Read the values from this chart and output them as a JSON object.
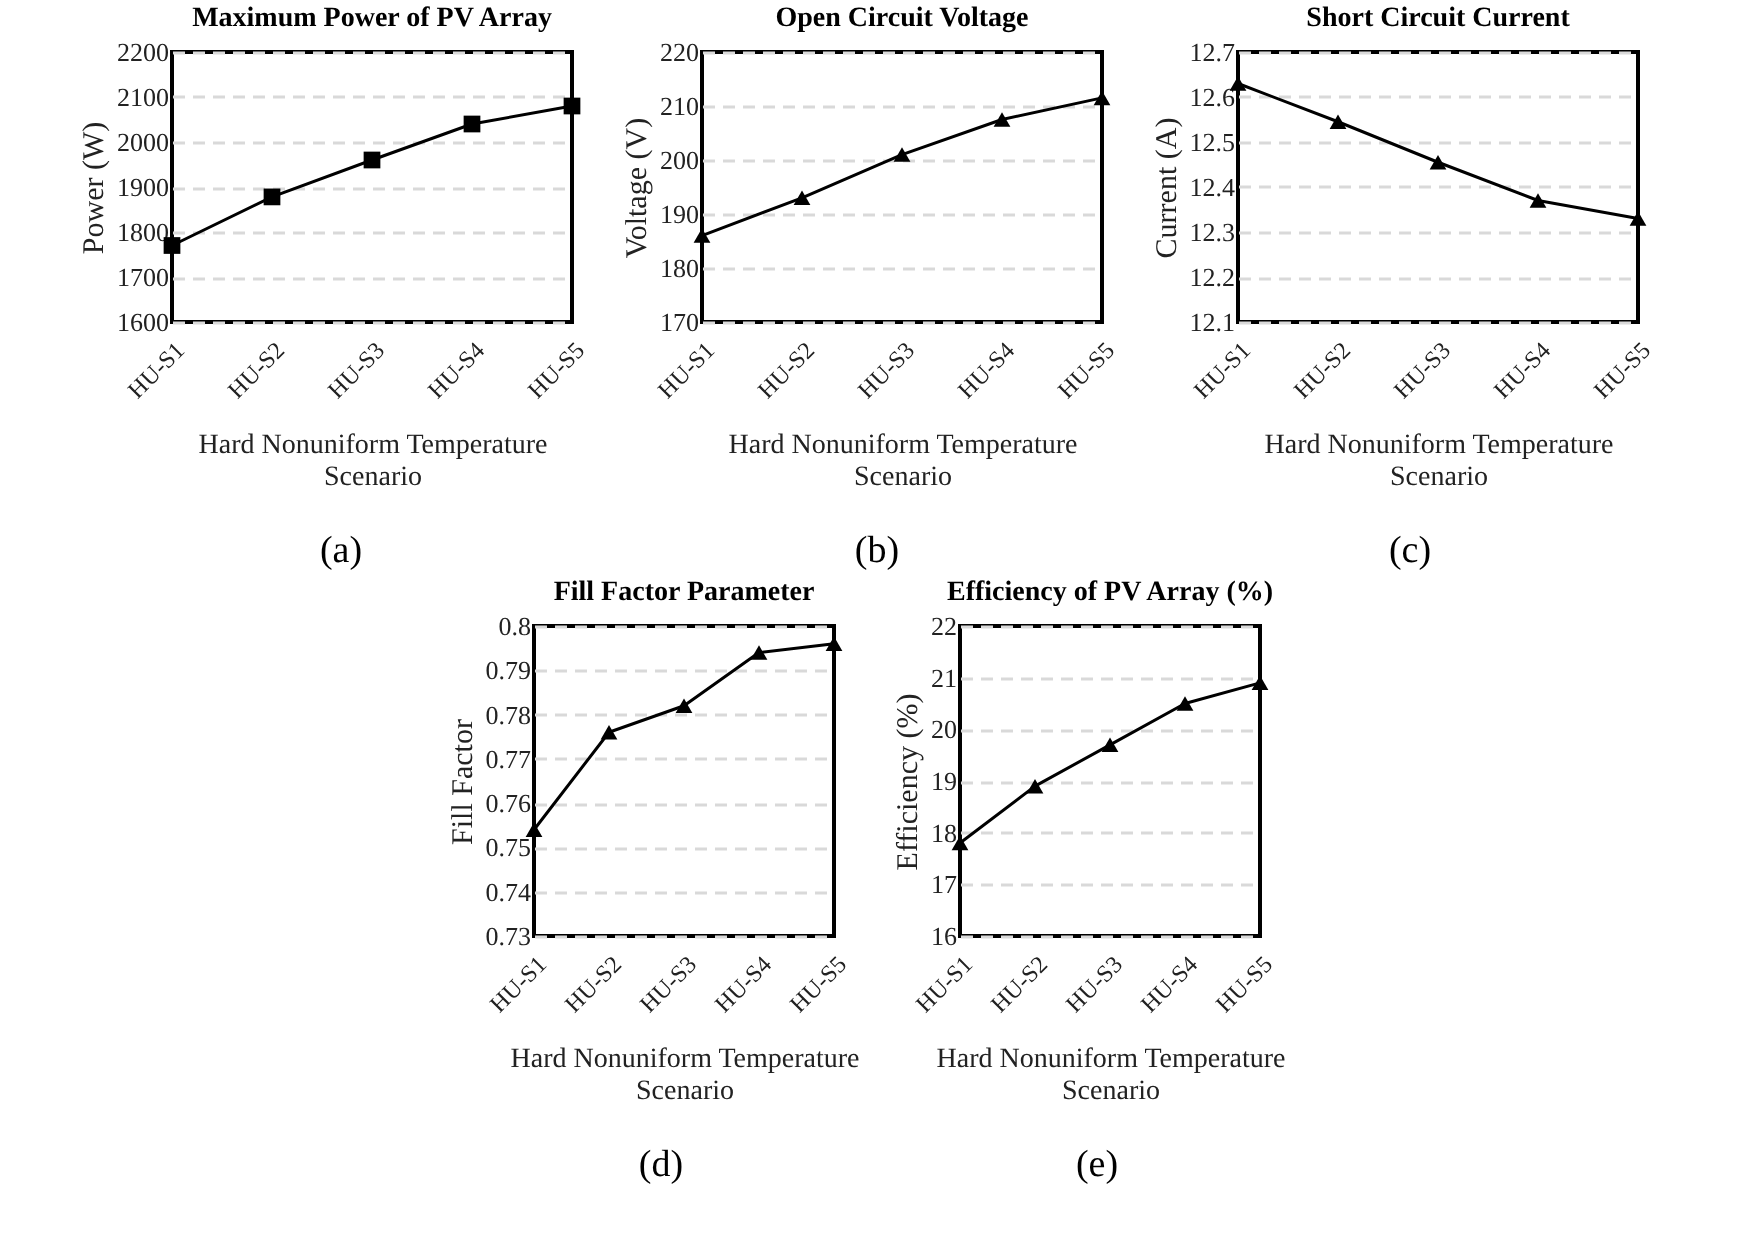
{
  "chart_data": [
    {
      "type": "line",
      "title": "Maximum Power of PV Array",
      "xlabel": "Hard Nonuniform Temperature Scenario",
      "ylabel": "Power (W)",
      "categories": [
        "HU-S1",
        "HU-S2",
        "HU-S3",
        "HU-S4",
        "HU-S5"
      ],
      "values": [
        1770,
        1878,
        1960,
        2040,
        2080
      ],
      "color": "#000000",
      "marker": "square",
      "ylim": [
        1600,
        2200
      ],
      "yticks": [
        1600,
        1700,
        1800,
        1900,
        2000,
        2100,
        2200
      ],
      "grid": "y",
      "annotations": [
        "(a)"
      ]
    },
    {
      "type": "line",
      "title": "Open Circuit Voltage",
      "xlabel": "Hard Nonuniform Temperature Scenario",
      "ylabel": "Voltage (V)",
      "categories": [
        "HU-S1",
        "HU-S2",
        "HU-S3",
        "HU-S4",
        "HU-S5"
      ],
      "values": [
        186,
        193,
        201,
        207.5,
        211.5
      ],
      "color": "#000000",
      "marker": "triangle",
      "ylim": [
        170,
        220
      ],
      "yticks": [
        170,
        180,
        190,
        200,
        210,
        220
      ],
      "grid": "y",
      "annotations": [
        "(b)"
      ]
    },
    {
      "type": "line",
      "title": "Short Circuit Current",
      "xlabel": "Hard Nonuniform Temperature Scenario",
      "ylabel": "Current (A)",
      "categories": [
        "HU-S1",
        "HU-S2",
        "HU-S3",
        "HU-S4",
        "HU-S5"
      ],
      "values": [
        12.63,
        12.545,
        12.455,
        12.37,
        12.33
      ],
      "color": "#000000",
      "marker": "triangle",
      "ylim": [
        12.1,
        12.7
      ],
      "yticks": [
        12.1,
        12.2,
        12.3,
        12.4,
        12.5,
        12.6,
        12.7
      ],
      "grid": "y",
      "annotations": [
        "(c)"
      ]
    },
    {
      "type": "line",
      "title": "Fill Factor Parameter",
      "xlabel": "Hard Nonuniform Temperature Scenario",
      "ylabel": "Fill Factor",
      "categories": [
        "HU-S1",
        "HU-S2",
        "HU-S3",
        "HU-S4",
        "HU-S5"
      ],
      "values": [
        0.754,
        0.776,
        0.782,
        0.794,
        0.796
      ],
      "color": "#000000",
      "marker": "triangle",
      "ylim": [
        0.73,
        0.8
      ],
      "yticks": [
        0.73,
        0.74,
        0.75,
        0.76,
        0.77,
        0.78,
        0.79,
        0.8
      ],
      "grid": "y",
      "annotations": [
        "(d)"
      ]
    },
    {
      "type": "line",
      "title": "Efficiency of PV Array (%)",
      "xlabel": "Hard Nonuniform Temperature Scenario",
      "ylabel": "Efficiency (%)",
      "categories": [
        "HU-S1",
        "HU-S2",
        "HU-S3",
        "HU-S4",
        "HU-S5"
      ],
      "values": [
        17.8,
        18.9,
        19.7,
        20.5,
        20.9
      ],
      "color": "#000000",
      "marker": "triangle",
      "ylim": [
        16,
        22
      ],
      "yticks": [
        16,
        17,
        18,
        19,
        20,
        21,
        22
      ],
      "grid": "y",
      "annotations": [
        "(e)"
      ]
    }
  ]
}
